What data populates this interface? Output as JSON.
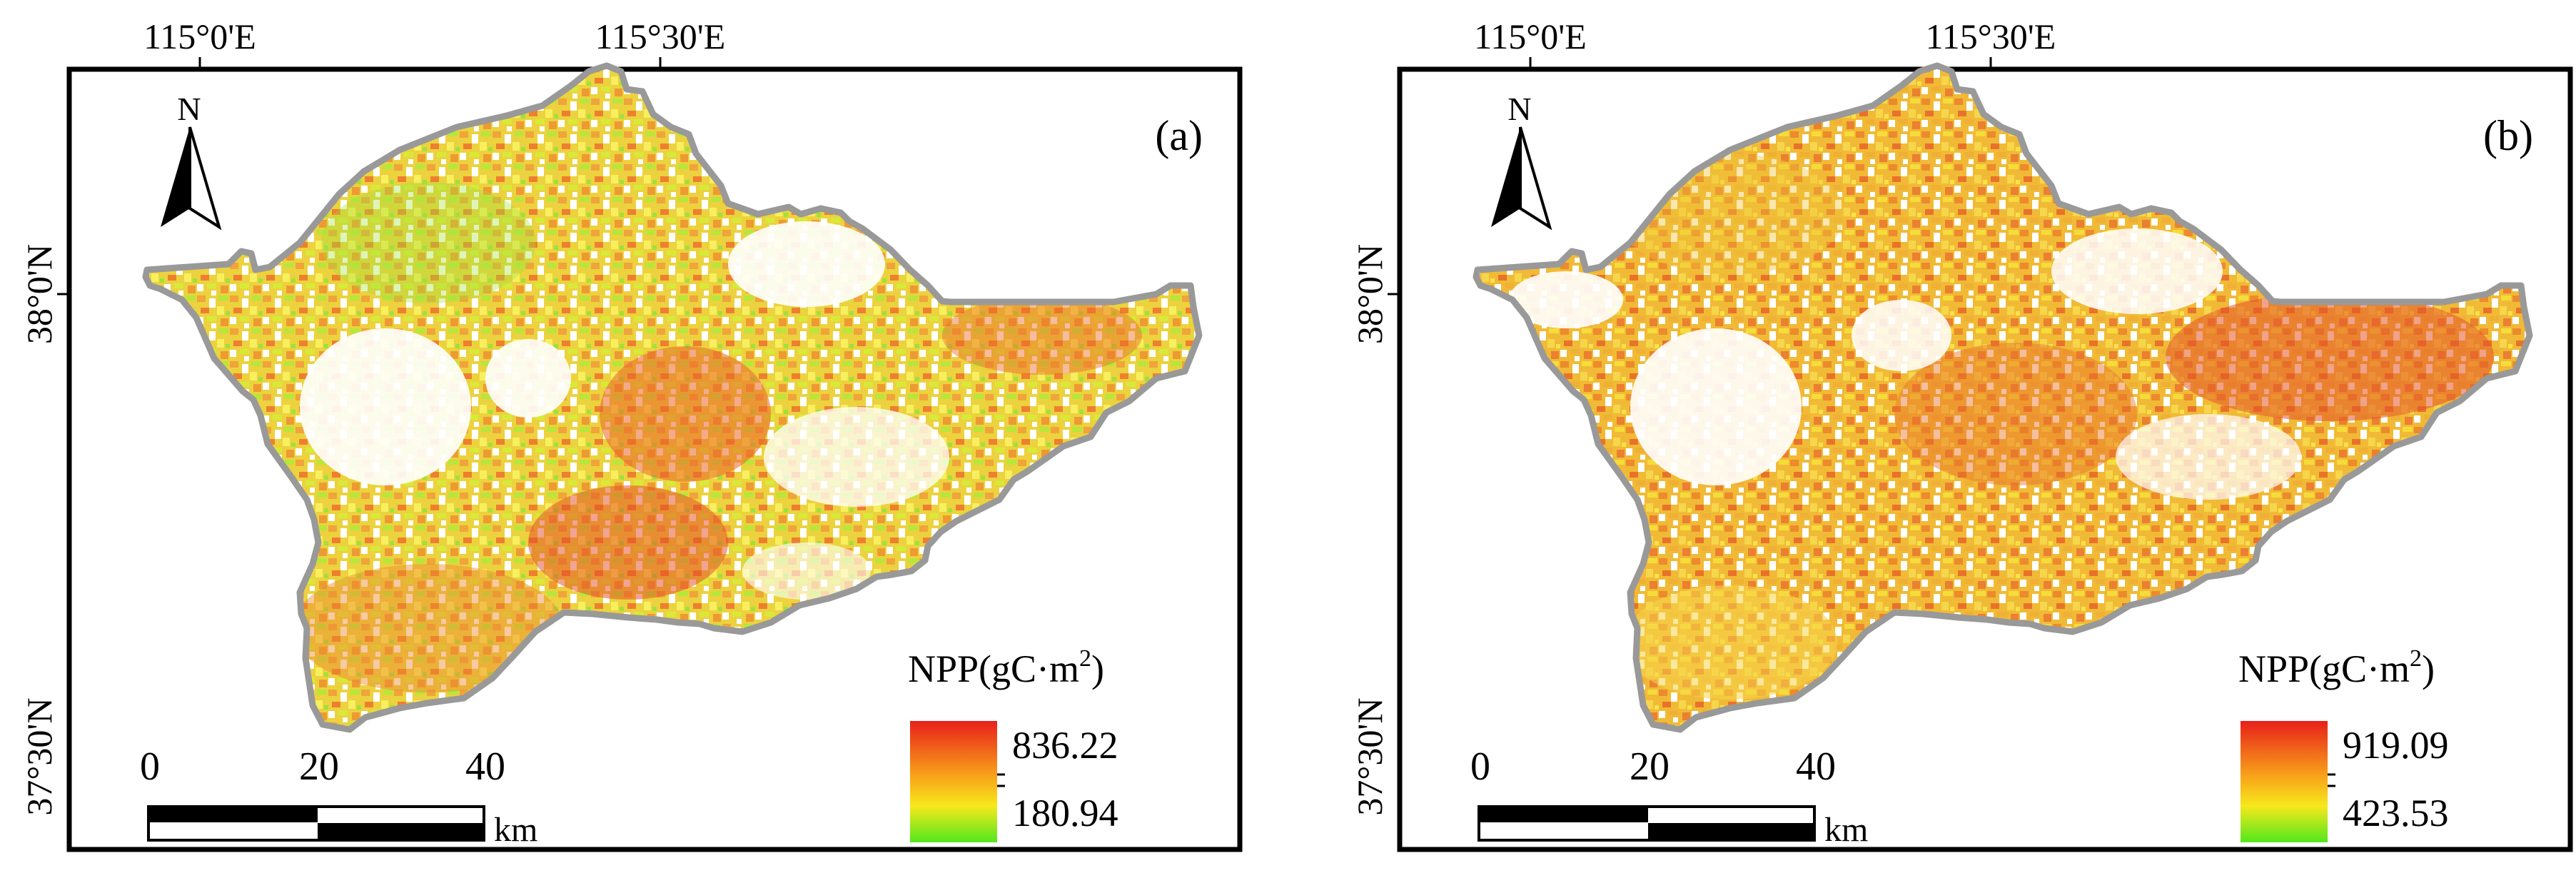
{
  "panels": [
    {
      "label": "(a)",
      "top_axis": [
        "115°0'E",
        "115°30'E"
      ],
      "left_axis": [
        "38°0'N",
        "37°30'N"
      ],
      "north": "N",
      "scale": {
        "ticks": [
          "0",
          "20",
          "40"
        ],
        "unit": "km"
      },
      "legend": {
        "title": "NPP(gC·m",
        "title_sup": "2",
        "title_close": ")",
        "max": "836.22",
        "min": "180.94"
      }
    },
    {
      "label": "(b)",
      "top_axis": [
        "115°0'E",
        "115°30'E"
      ],
      "left_axis": [
        "38°0'N",
        "37°30'N"
      ],
      "north": "N",
      "scale": {
        "ticks": [
          "0",
          "20",
          "40"
        ],
        "unit": "km"
      },
      "legend": {
        "title": "NPP(gC·m",
        "title_sup": "2",
        "title_close": ")",
        "max": "919.09",
        "min": "423.53"
      }
    }
  ],
  "colors": {
    "ramp_high": "#e8201a",
    "ramp_mid": "#f7c80f",
    "ramp_low": "#52e81c",
    "boundary": "#999999"
  }
}
